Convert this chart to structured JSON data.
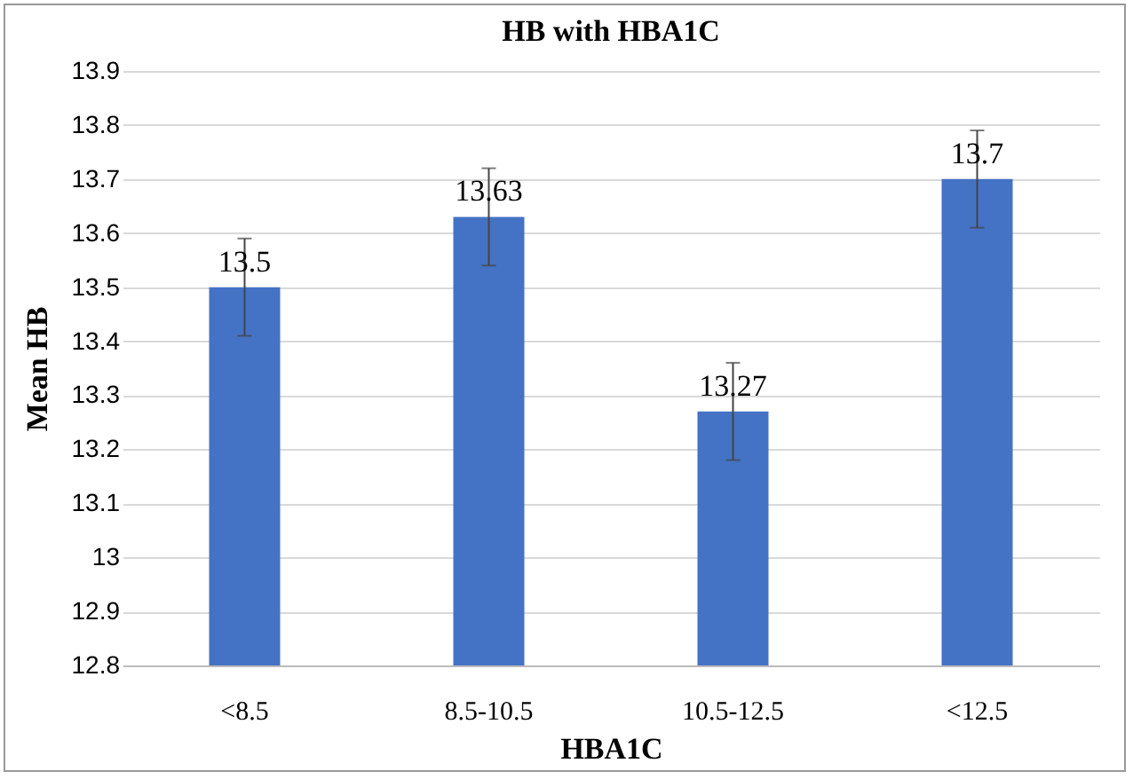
{
  "chart_data": {
    "type": "bar",
    "title": "HB with HBA1C",
    "xlabel": "HBA1C",
    "ylabel": "Mean HB",
    "categories": [
      "<8.5",
      "8.5-10.5",
      "10.5-12.5",
      "<12.5"
    ],
    "values": [
      13.5,
      13.63,
      13.27,
      13.7
    ],
    "errors": [
      0.09,
      0.09,
      0.09,
      0.09
    ],
    "color": "#4472c4",
    "ylim": [
      12.8,
      13.9
    ],
    "yticks": [
      12.8,
      12.9,
      13,
      13.1,
      13.2,
      13.3,
      13.4,
      13.5,
      13.6,
      13.7,
      13.8,
      13.9
    ],
    "grid": "y",
    "data_labels": true
  }
}
